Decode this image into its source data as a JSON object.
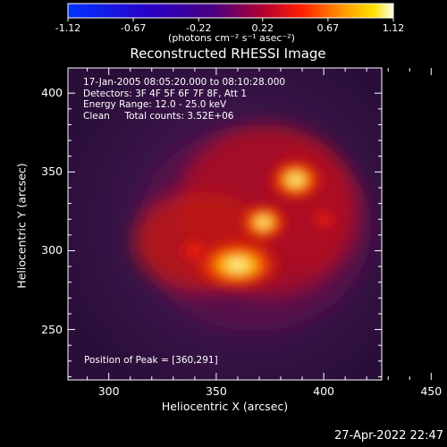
{
  "chart_data": {
    "type": "heatmap",
    "title": "Reconstructed RHESSI Image",
    "xlabel": "Heliocentric X (arcsec)",
    "ylabel": "Heliocentric Y (arcsec)",
    "xlim": [
      281,
      427
    ],
    "ylim": [
      218,
      416
    ],
    "x_ticks": [
      "300",
      "350",
      "400",
      "450"
    ],
    "y_ticks": [
      "250",
      "300",
      "350",
      "400"
    ],
    "colorbar": {
      "ticks": [
        "-1.12",
        "-0.67",
        "-0.22",
        "0.22",
        "0.67",
        "1.12"
      ],
      "range": [
        -1.12,
        1.12
      ],
      "label": "(photons cm⁻² s⁻¹ asec⁻²)"
    },
    "annotations": [
      "17-Jan-2005 08:05:20.000 to 08:10:28.000",
      "Detectors: 3F 4F 5F 6F 7F 8F, Att 1",
      "Energy Range: 12.0 - 25.0 keV",
      "Clean     Total counts: 3.52E+06"
    ],
    "peak_label": "Position of Peak = [360,291]",
    "peak": [
      360,
      291
    ],
    "sources": [
      {
        "x": 360,
        "y": 291,
        "value": 1.12
      },
      {
        "x": 387,
        "y": 345,
        "value": 0.95
      },
      {
        "x": 372,
        "y": 318,
        "value": 0.8
      },
      {
        "x": 340,
        "y": 300,
        "value": 0.55
      },
      {
        "x": 400,
        "y": 320,
        "value": 0.35
      }
    ],
    "timestamp": "27-Apr-2022 22:47"
  }
}
